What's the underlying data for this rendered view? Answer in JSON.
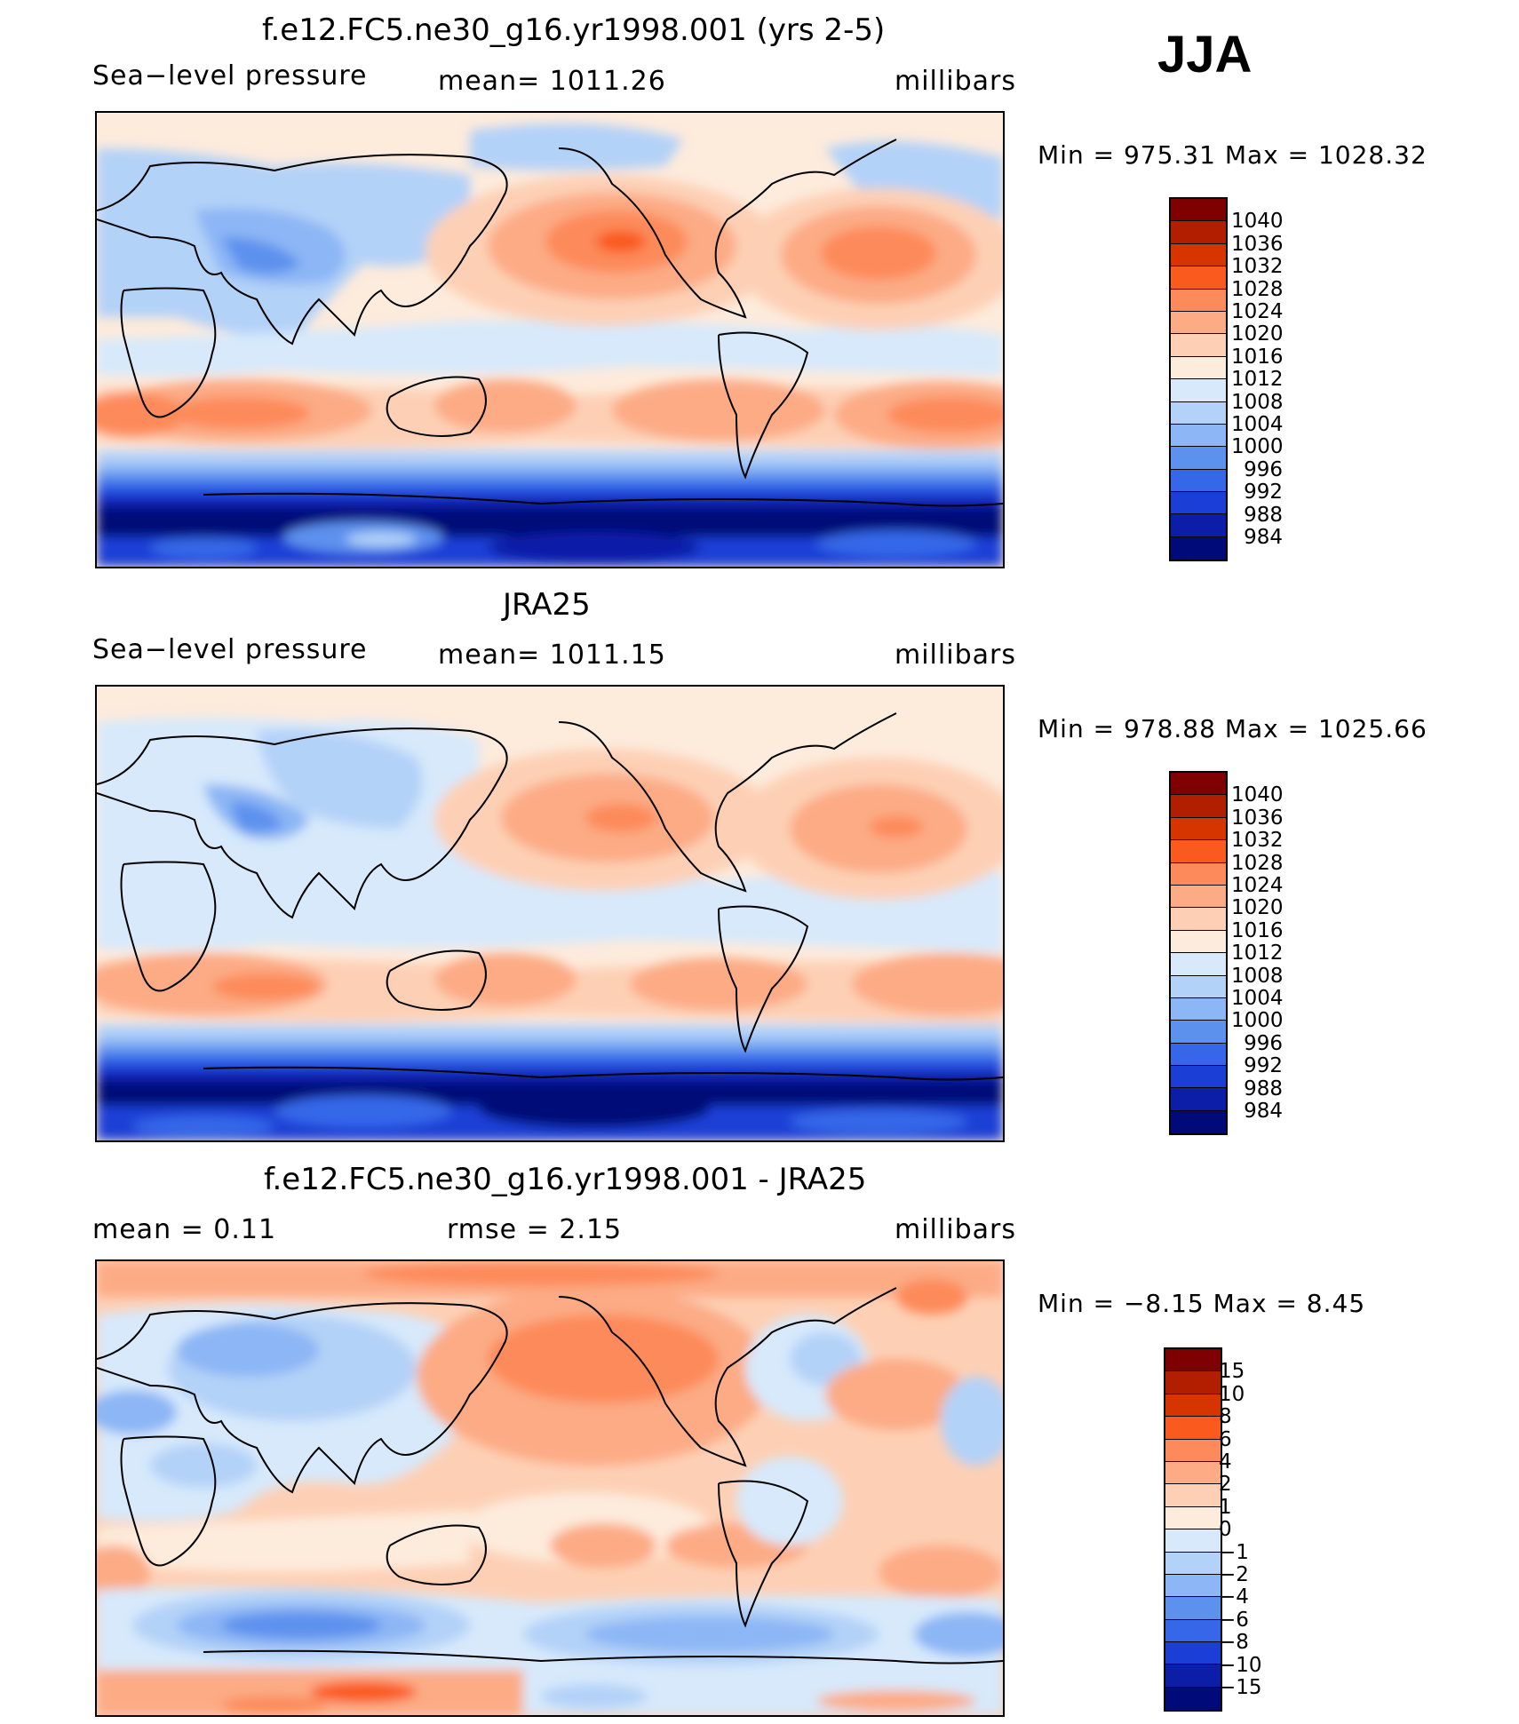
{
  "season": "JJA",
  "panels": [
    {
      "id": "model",
      "title": "f.e12.FC5.ne30_g16.yr1998.001 (yrs 2-5)",
      "left_label": "Sea−level pressure",
      "center_label": "mean=  1011.26",
      "units": "millibars",
      "minmax": "Min  =  975.31  Max  =  1028.32"
    },
    {
      "id": "obs",
      "title": "JRA25",
      "left_label": "Sea−level pressure",
      "center_label": "mean=  1011.15",
      "units": "millibars",
      "minmax": "Min  =  978.88  Max  =  1025.66"
    },
    {
      "id": "diff",
      "title": "f.e12.FC5.ne30_g16.yr1998.001 - JRA25",
      "left_label": "mean  =     0.11",
      "center_label": "rmse  =     2.15",
      "units": "millibars",
      "minmax": "Min  =   −8.15  Max  =     8.45"
    }
  ],
  "colorbar_abs": {
    "labels": [
      "1040",
      "1036",
      "1032",
      "1028",
      "1024",
      "1020",
      "1016",
      "1012",
      "1008",
      "1004",
      "1000",
      "996",
      "992",
      "988",
      "984"
    ],
    "colors": [
      "#7f0000",
      "#b21e00",
      "#d63500",
      "#fa5a1e",
      "#fd8a5a",
      "#fcab85",
      "#fdd0b5",
      "#fdebdc",
      "#d7e9fb",
      "#b3d2f8",
      "#8cb6f5",
      "#5d91ee",
      "#3567e8",
      "#1b3fd6",
      "#0c1ea8",
      "#000a78"
    ]
  },
  "colorbar_diff": {
    "labels": [
      "15",
      "10",
      "8",
      "6",
      "4",
      "2",
      "1",
      "0",
      "−1",
      "−2",
      "−4",
      "−6",
      "−8",
      "−10",
      "−15"
    ],
    "colors": [
      "#7f0000",
      "#b21e00",
      "#d63500",
      "#fa5a1e",
      "#fd8a5a",
      "#fcab85",
      "#fdd0b5",
      "#fdebdc",
      "#d7e9fb",
      "#b3d2f8",
      "#8cb6f5",
      "#5d91ee",
      "#3567e8",
      "#1b3fd6",
      "#0c1ea8",
      "#000a78"
    ]
  }
}
